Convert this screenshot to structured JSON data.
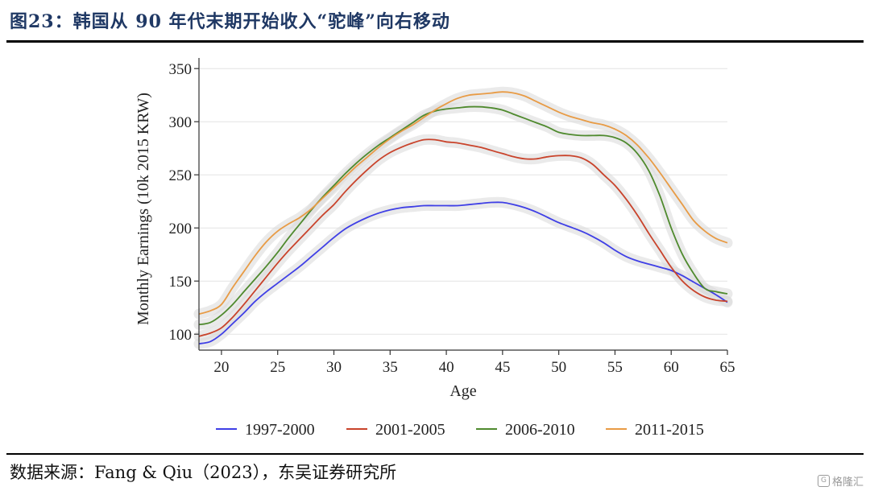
{
  "header": {
    "title": "图23：韩国从 90 年代末期开始收入“驼峰”向右移动"
  },
  "footer": {
    "source": "数据来源：Fang & Qiu（2023），东吴证券研究所"
  },
  "watermark": {
    "icon": "G",
    "text": "格隆汇"
  },
  "chart_data": {
    "type": "line",
    "title": "",
    "xlabel": "Age",
    "ylabel": "Monthly Earnings (10k 2015 KRW)",
    "xlim": [
      18,
      65
    ],
    "ylim": [
      85,
      360
    ],
    "xticks": [
      20,
      25,
      30,
      35,
      40,
      45,
      50,
      55,
      60,
      65
    ],
    "yticks": [
      100,
      150,
      200,
      250,
      300,
      350
    ],
    "grid": "horizontal",
    "legend_position": "bottom",
    "confidence_band": true,
    "x": [
      18,
      19,
      20,
      21,
      22,
      23,
      24,
      25,
      26,
      27,
      28,
      29,
      30,
      31,
      32,
      33,
      34,
      35,
      36,
      37,
      38,
      39,
      40,
      41,
      42,
      43,
      44,
      45,
      46,
      47,
      48,
      49,
      50,
      51,
      52,
      53,
      54,
      55,
      56,
      57,
      58,
      59,
      60,
      61,
      62,
      63,
      64,
      65
    ],
    "series": [
      {
        "name": "1997-2000",
        "color": "#3f3fe6",
        "values": [
          91,
          93,
          100,
          110,
          120,
          131,
          140,
          148,
          156,
          164,
          173,
          182,
          191,
          199,
          205,
          210,
          214,
          217,
          219,
          220,
          221,
          221,
          221,
          221,
          222,
          223,
          224,
          224,
          222,
          219,
          215,
          210,
          205,
          201,
          197,
          192,
          186,
          179,
          173,
          169,
          166,
          163,
          160,
          155,
          149,
          143,
          137,
          130
        ]
      },
      {
        "name": "2001-2005",
        "color": "#c9432b",
        "values": [
          98,
          101,
          106,
          116,
          128,
          141,
          154,
          167,
          179,
          190,
          201,
          212,
          222,
          234,
          245,
          255,
          264,
          271,
          276,
          280,
          283,
          283,
          281,
          280,
          278,
          276,
          273,
          270,
          267,
          265,
          265,
          267,
          268,
          268,
          266,
          260,
          250,
          240,
          227,
          212,
          195,
          179,
          163,
          150,
          141,
          135,
          132,
          131
        ]
      },
      {
        "name": "2006-2010",
        "color": "#4f8a2e",
        "values": [
          109,
          111,
          118,
          128,
          140,
          152,
          164,
          177,
          191,
          204,
          217,
          229,
          240,
          251,
          261,
          270,
          278,
          285,
          292,
          299,
          306,
          310,
          312,
          313,
          314,
          314,
          313,
          311,
          307,
          303,
          299,
          295,
          290,
          288,
          287,
          287,
          287,
          285,
          280,
          270,
          254,
          230,
          200,
          175,
          157,
          143,
          140,
          138
        ]
      },
      {
        "name": "2011-2015",
        "color": "#e89b45",
        "values": [
          119,
          122,
          128,
          144,
          159,
          174,
          187,
          197,
          204,
          210,
          218,
          228,
          238,
          248,
          258,
          267,
          276,
          284,
          291,
          297,
          304,
          311,
          317,
          322,
          325,
          326,
          327,
          328,
          327,
          324,
          319,
          314,
          309,
          305,
          302,
          299,
          297,
          293,
          287,
          278,
          266,
          252,
          237,
          222,
          207,
          197,
          190,
          186
        ]
      }
    ]
  }
}
